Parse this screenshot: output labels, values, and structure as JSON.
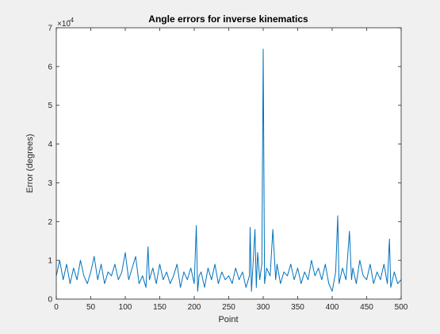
{
  "figure": {
    "background_color": "#f0f0f0"
  },
  "chart_data": {
    "type": "line",
    "title": "Angle errors for inverse kinematics",
    "xlabel": "Point",
    "ylabel": "Error (degrees)",
    "xlim": [
      0,
      500
    ],
    "ylim": [
      0,
      7
    ],
    "y_exponent_label": "×10",
    "y_exponent_power": "-4",
    "xticks": [
      0,
      50,
      100,
      150,
      200,
      250,
      300,
      350,
      400,
      450,
      500
    ],
    "xtick_labels": [
      "0",
      "50",
      "100",
      "150",
      "200",
      "250",
      "300",
      "350",
      "400",
      "450",
      "500"
    ],
    "yticks": [
      0,
      1,
      2,
      3,
      4,
      5,
      6,
      7
    ],
    "ytick_labels": [
      "0",
      "1",
      "2",
      "3",
      "4",
      "5",
      "6",
      "7"
    ],
    "grid": false,
    "line_color": "#0072bd",
    "axes_color": "#262626",
    "series": [
      {
        "x": [
          0,
          5,
          10,
          15,
          20,
          25,
          30,
          35,
          40,
          45,
          50,
          55,
          60,
          65,
          70,
          75,
          80,
          85,
          90,
          95,
          100,
          105,
          110,
          115,
          120,
          125,
          130,
          133,
          135,
          140,
          145,
          150,
          155,
          160,
          165,
          170,
          175,
          180,
          185,
          190,
          195,
          200,
          203,
          205,
          207,
          210,
          215,
          220,
          225,
          230,
          235,
          240,
          245,
          250,
          255,
          260,
          265,
          270,
          275,
          280,
          281,
          283,
          285,
          288,
          290,
          292,
          295,
          298,
          300,
          302,
          305,
          310,
          314,
          318,
          320,
          325,
          330,
          335,
          340,
          345,
          350,
          355,
          360,
          365,
          370,
          375,
          380,
          385,
          390,
          395,
          400,
          405,
          408,
          410,
          415,
          420,
          425,
          428,
          430,
          435,
          440,
          445,
          450,
          455,
          460,
          465,
          470,
          475,
          480,
          483,
          485,
          490,
          495,
          500
        ],
        "values": [
          0.6,
          1.0,
          0.5,
          0.9,
          0.4,
          0.8,
          0.5,
          1.0,
          0.6,
          0.4,
          0.7,
          1.1,
          0.5,
          0.9,
          0.4,
          0.7,
          0.6,
          0.9,
          0.5,
          0.7,
          1.2,
          0.5,
          0.8,
          1.1,
          0.4,
          0.6,
          0.3,
          1.35,
          0.5,
          0.8,
          0.4,
          0.9,
          0.5,
          0.7,
          0.4,
          0.6,
          0.9,
          0.3,
          0.7,
          0.5,
          0.8,
          0.4,
          1.9,
          0.2,
          0.6,
          0.7,
          0.3,
          0.8,
          0.5,
          0.9,
          0.4,
          0.7,
          0.5,
          0.6,
          0.4,
          0.8,
          0.5,
          0.7,
          0.3,
          0.6,
          1.85,
          0.2,
          0.8,
          1.8,
          0.3,
          1.2,
          0.5,
          0.9,
          6.45,
          0.4,
          0.8,
          0.6,
          1.8,
          0.5,
          0.9,
          0.4,
          0.7,
          0.6,
          0.9,
          0.5,
          0.8,
          0.4,
          0.7,
          0.5,
          1.0,
          0.6,
          0.8,
          0.5,
          0.9,
          0.4,
          0.2,
          0.7,
          2.15,
          0.4,
          0.8,
          0.5,
          1.75,
          0.5,
          0.8,
          0.4,
          1.0,
          0.6,
          0.5,
          0.9,
          0.4,
          0.7,
          0.5,
          0.9,
          0.4,
          1.55,
          0.3,
          0.7,
          0.4,
          0.5
        ]
      }
    ]
  }
}
